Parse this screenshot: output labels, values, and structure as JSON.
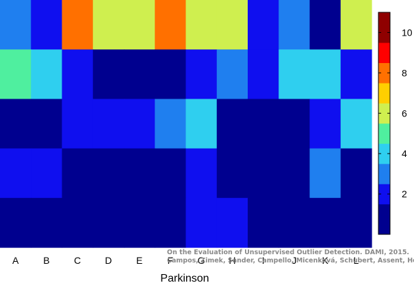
{
  "chart_data": {
    "type": "heatmap",
    "xlabel": "Parkinson",
    "categories": [
      "A",
      "B",
      "C",
      "D",
      "E",
      "F",
      "G",
      "H",
      "I",
      "J",
      "K",
      "L"
    ],
    "rows": [
      [
        3,
        2,
        8,
        6,
        6,
        8,
        6,
        6,
        2,
        3,
        1,
        6
      ],
      [
        5,
        4,
        2,
        1,
        1,
        1,
        2,
        3,
        2,
        4,
        4,
        2
      ],
      [
        1,
        1,
        2,
        2,
        2,
        3,
        4,
        1,
        1,
        1,
        2,
        4
      ],
      [
        2,
        2,
        1,
        1,
        1,
        1,
        2,
        1,
        1,
        1,
        3,
        1
      ],
      [
        1,
        1,
        1,
        1,
        1,
        1,
        2,
        2,
        1,
        1,
        1,
        1
      ]
    ],
    "colorbar": {
      "ticks": [
        2,
        4,
        6,
        8,
        10
      ],
      "range": [
        0,
        11
      ]
    },
    "colors": {
      "1": "#00008f",
      "2": "#0f0fef",
      "3": "#1f7fef",
      "4": "#2fcfef",
      "5": "#4fef9f",
      "6": "#cfef4f",
      "7": "#ffcf00",
      "8": "#ff7000",
      "9": "#ff0000",
      "10": "#8f0000"
    },
    "annotation": {
      "line1": "On the Evaluation of Unsupervised Outlier Detection. DAMI, 2015.",
      "line2": "Campos, Zimek, Sander, Campello, Micenková, Schubert, Assent, Houle"
    }
  }
}
